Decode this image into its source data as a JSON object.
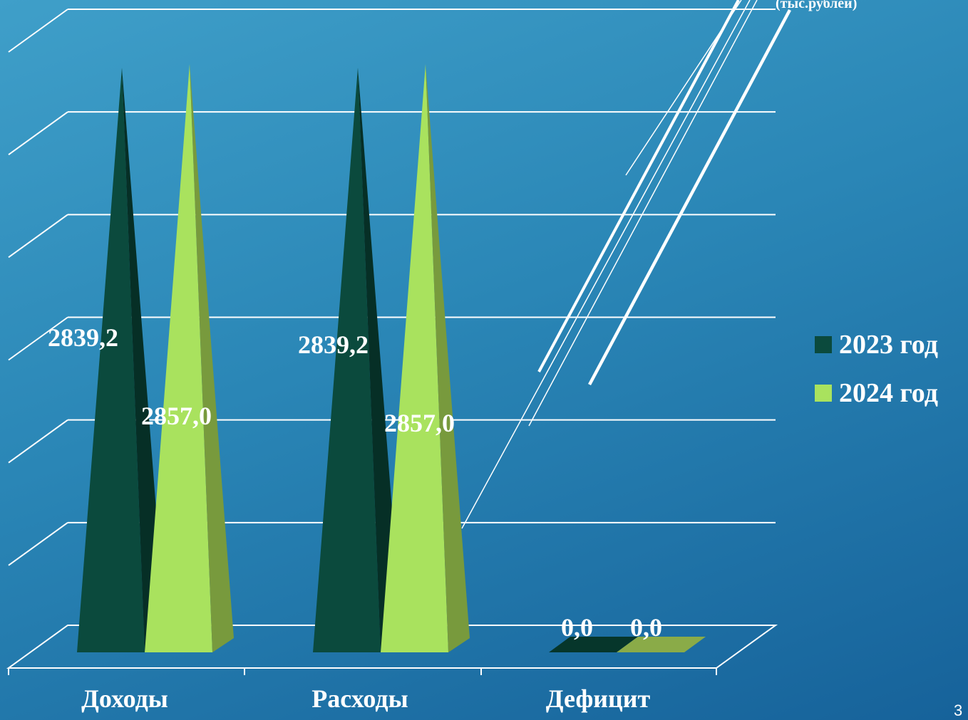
{
  "chart_data": {
    "type": "bar",
    "subtype": "3d-pyramid",
    "units_label": "(тыс.рублей)",
    "categories": [
      "Доходы",
      "Расходы",
      "Дефицит"
    ],
    "series": [
      {
        "name": "2023 год",
        "values": [
          2839.2,
          2839.2,
          0.0
        ],
        "labels": [
          "2839,2",
          "2839,2",
          "0,0"
        ],
        "color": "#0b4a3d",
        "side_color": "#062f26"
      },
      {
        "name": "2024 год",
        "values": [
          2857.0,
          2857.0,
          0.0
        ],
        "labels": [
          "2857,0",
          "2857,0",
          "0,0"
        ],
        "color": "#a9e25e",
        "side_color": "#789a3d"
      }
    ],
    "ylim": [
      0,
      3500
    ],
    "grid": true,
    "legend_position": "right"
  },
  "page_number": "3"
}
